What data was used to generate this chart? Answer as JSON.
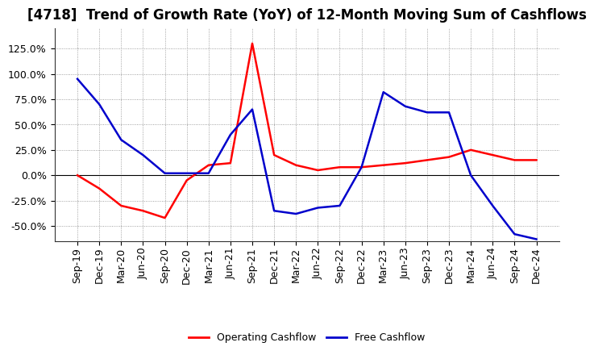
{
  "title": "[4718]  Trend of Growth Rate (YoY) of 12-Month Moving Sum of Cashflows",
  "x_labels": [
    "Sep-19",
    "Dec-19",
    "Mar-20",
    "Jun-20",
    "Sep-20",
    "Dec-20",
    "Mar-21",
    "Jun-21",
    "Sep-21",
    "Dec-21",
    "Mar-22",
    "Jun-22",
    "Sep-22",
    "Dec-22",
    "Mar-23",
    "Jun-23",
    "Sep-23",
    "Dec-23",
    "Mar-24",
    "Jun-24",
    "Sep-24",
    "Dec-24"
  ],
  "operating_cashflow": [
    0.0,
    -13.0,
    -30.0,
    -35.0,
    -42.0,
    -5.0,
    10.0,
    12.0,
    130.0,
    20.0,
    10.0,
    5.0,
    8.0,
    8.0,
    10.0,
    12.0,
    15.0,
    18.0,
    25.0,
    20.0,
    15.0,
    15.0
  ],
  "free_cashflow": [
    95.0,
    70.0,
    35.0,
    20.0,
    2.0,
    2.0,
    2.0,
    40.0,
    65.0,
    -35.0,
    -38.0,
    -32.0,
    -30.0,
    8.0,
    82.0,
    68.0,
    62.0,
    62.0,
    0.0,
    -30.0,
    -58.0,
    -63.0
  ],
  "operating_color": "#ff0000",
  "free_color": "#0000cc",
  "ylim": [
    -65.0,
    145.0
  ],
  "yticks": [
    -50.0,
    -25.0,
    0.0,
    25.0,
    50.0,
    75.0,
    100.0,
    125.0
  ],
  "background_color": "#ffffff",
  "plot_bg_color": "#ffffff",
  "grid_color": "#888888",
  "legend_labels": [
    "Operating Cashflow",
    "Free Cashflow"
  ],
  "title_fontsize": 12,
  "tick_fontsize": 9,
  "legend_fontsize": 9,
  "linewidth": 1.8
}
